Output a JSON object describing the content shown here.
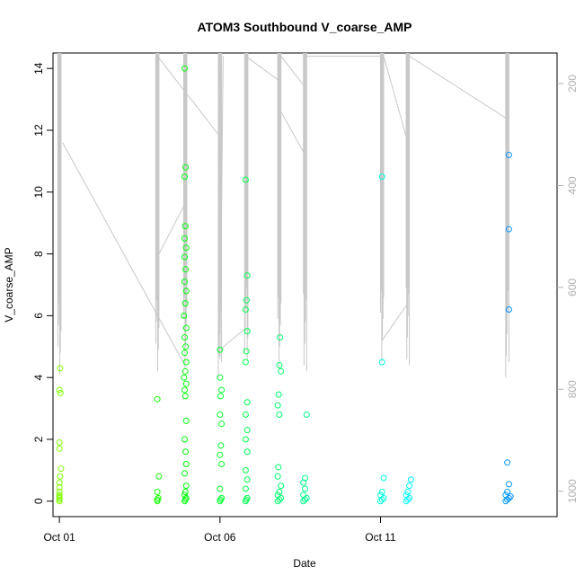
{
  "chart_data": {
    "type": "scatter",
    "title": "ATOM3 Southbound V_coarse_AMP",
    "xlabel": "Date",
    "ylabel": "V_coarse_AMP",
    "xlim": [
      0.8,
      16.5
    ],
    "ylim": [
      -0.5,
      14.5
    ],
    "x_ticks": [
      {
        "value": 1,
        "label": "Oct 01"
      },
      {
        "value": 6,
        "label": "Oct 06"
      },
      {
        "value": 11,
        "label": "Oct 11"
      }
    ],
    "y_ticks": [
      0,
      2,
      4,
      6,
      8,
      10,
      12,
      14
    ],
    "y2_ticks": [
      200,
      400,
      600,
      800,
      1000
    ],
    "y2lim": [
      1050,
      140
    ],
    "grid": false,
    "point_color_scale": "green-to-blue by date",
    "points": [
      [
        1.0,
        0.0
      ],
      [
        1.0,
        0.05
      ],
      [
        1.0,
        0.1
      ],
      [
        1.0,
        0.15
      ],
      [
        1.0,
        0.2
      ],
      [
        1.0,
        0.3
      ],
      [
        1.0,
        0.45
      ],
      [
        1.0,
        0.6
      ],
      [
        1.02,
        0.8
      ],
      [
        1.05,
        1.05
      ],
      [
        1.0,
        1.7
      ],
      [
        1.0,
        1.9
      ],
      [
        1.03,
        3.5
      ],
      [
        1.0,
        3.6
      ],
      [
        1.02,
        4.3
      ],
      [
        4.05,
        0.0
      ],
      [
        4.05,
        0.05
      ],
      [
        4.08,
        0.1
      ],
      [
        4.05,
        0.3
      ],
      [
        4.1,
        0.8
      ],
      [
        4.05,
        3.3
      ],
      [
        4.9,
        0.0
      ],
      [
        4.92,
        0.05
      ],
      [
        4.95,
        0.1
      ],
      [
        4.9,
        0.2
      ],
      [
        4.92,
        0.3
      ],
      [
        4.95,
        0.5
      ],
      [
        4.9,
        0.9
      ],
      [
        4.95,
        1.2
      ],
      [
        4.93,
        1.6
      ],
      [
        4.9,
        2.0
      ],
      [
        4.95,
        2.6
      ],
      [
        4.92,
        3.4
      ],
      [
        4.9,
        3.6
      ],
      [
        4.95,
        3.8
      ],
      [
        4.88,
        4.0
      ],
      [
        4.92,
        4.2
      ],
      [
        4.95,
        4.5
      ],
      [
        4.9,
        4.8
      ],
      [
        4.93,
        5.0
      ],
      [
        4.9,
        5.3
      ],
      [
        4.95,
        5.6
      ],
      [
        4.88,
        6.0
      ],
      [
        4.92,
        6.4
      ],
      [
        4.95,
        6.8
      ],
      [
        4.9,
        7.1
      ],
      [
        4.93,
        7.5
      ],
      [
        4.9,
        7.9
      ],
      [
        4.95,
        8.2
      ],
      [
        4.9,
        8.5
      ],
      [
        4.92,
        8.9
      ],
      [
        4.9,
        10.5
      ],
      [
        4.93,
        10.8
      ],
      [
        4.9,
        14.0
      ],
      [
        6.0,
        0.0
      ],
      [
        6.02,
        0.05
      ],
      [
        6.05,
        0.1
      ],
      [
        6.0,
        0.4
      ],
      [
        6.05,
        1.2
      ],
      [
        6.0,
        1.5
      ],
      [
        6.03,
        1.8
      ],
      [
        6.05,
        2.5
      ],
      [
        6.0,
        2.8
      ],
      [
        6.02,
        3.4
      ],
      [
        6.05,
        3.6
      ],
      [
        6.0,
        4.0
      ],
      [
        6.0,
        4.9
      ],
      [
        6.8,
        0.0
      ],
      [
        6.82,
        0.05
      ],
      [
        6.85,
        0.1
      ],
      [
        6.8,
        0.4
      ],
      [
        6.85,
        0.7
      ],
      [
        6.8,
        1.0
      ],
      [
        6.85,
        1.6
      ],
      [
        6.8,
        2.0
      ],
      [
        6.85,
        2.3
      ],
      [
        6.8,
        2.8
      ],
      [
        6.85,
        3.2
      ],
      [
        6.8,
        4.5
      ],
      [
        6.82,
        4.85
      ],
      [
        6.85,
        5.5
      ],
      [
        6.8,
        6.2
      ],
      [
        6.83,
        6.5
      ],
      [
        6.85,
        7.3
      ],
      [
        6.8,
        10.4
      ],
      [
        7.8,
        0.0
      ],
      [
        7.85,
        0.05
      ],
      [
        7.9,
        0.1
      ],
      [
        7.8,
        0.2
      ],
      [
        7.85,
        0.3
      ],
      [
        7.9,
        0.5
      ],
      [
        7.8,
        0.8
      ],
      [
        7.82,
        1.1
      ],
      [
        7.85,
        2.8
      ],
      [
        7.8,
        3.1
      ],
      [
        7.83,
        3.45
      ],
      [
        7.9,
        4.2
      ],
      [
        7.85,
        4.4
      ],
      [
        7.87,
        5.3
      ],
      [
        8.6,
        0.0
      ],
      [
        8.65,
        0.05
      ],
      [
        8.7,
        0.1
      ],
      [
        8.6,
        0.2
      ],
      [
        8.65,
        0.4
      ],
      [
        8.6,
        0.6
      ],
      [
        8.65,
        0.75
      ],
      [
        8.7,
        2.8
      ],
      [
        11.0,
        0.0
      ],
      [
        11.05,
        0.05
      ],
      [
        11.1,
        0.1
      ],
      [
        11.0,
        0.2
      ],
      [
        11.05,
        0.3
      ],
      [
        11.1,
        0.75
      ],
      [
        11.05,
        4.5
      ],
      [
        11.05,
        10.5
      ],
      [
        11.8,
        0.0
      ],
      [
        11.85,
        0.05
      ],
      [
        11.9,
        0.1
      ],
      [
        11.8,
        0.2
      ],
      [
        11.85,
        0.3
      ],
      [
        11.9,
        0.5
      ],
      [
        11.95,
        0.7
      ],
      [
        14.9,
        0.0
      ],
      [
        14.95,
        0.05
      ],
      [
        15.0,
        0.1
      ],
      [
        15.05,
        0.15
      ],
      [
        14.9,
        0.2
      ],
      [
        14.95,
        0.3
      ],
      [
        15.0,
        0.55
      ],
      [
        14.95,
        1.25
      ],
      [
        15.0,
        6.2
      ],
      [
        15.0,
        8.8
      ],
      [
        15.0,
        11.2
      ]
    ],
    "overlay_lines": [
      [
        [
          1.0,
          1.05
        ],
        [
          1.0,
          1.0
        ],
        [
          1.0,
          1.05
        ],
        [
          1.0,
          6.6
        ],
        [
          1.05,
          6.6
        ],
        [
          1.1,
          7.6
        ],
        [
          1.15,
          8.0
        ],
        [
          1.0,
          1.0
        ]
      ],
      [
        [
          1.1,
          3.6
        ],
        [
          4.95,
          5.0
        ],
        [
          4.05,
          6.5
        ],
        [
          4.05,
          1.0
        ]
      ],
      [
        [
          4.05,
          1.2
        ],
        [
          4.9,
          3.0
        ],
        [
          4.9,
          4.0
        ]
      ]
    ]
  }
}
